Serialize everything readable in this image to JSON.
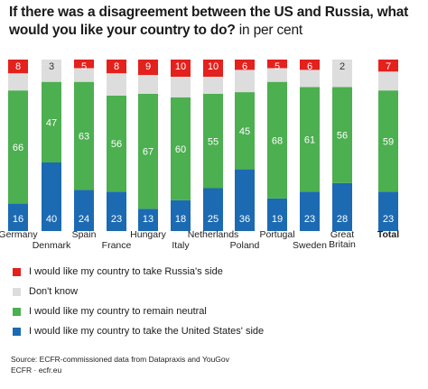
{
  "title": "If there was a disagreement between the US and Russia, what would you like your country to do?",
  "subtitle": "in per cent",
  "colors": {
    "russia": "#e3211d",
    "dont_know": "#dddddd",
    "neutral": "#4caf50",
    "us": "#1c6ab2"
  },
  "legend": [
    {
      "key": "russia",
      "label": "I would like my country to take Russia's side"
    },
    {
      "key": "dont_know",
      "label": "Don't know"
    },
    {
      "key": "neutral",
      "label": "I would like my country to remain neutral"
    },
    {
      "key": "us",
      "label": "I would like my country to take the United States' side"
    }
  ],
  "footer": {
    "source": "Source: ECFR-commissioned data from Datapraxis and YouGov",
    "credit": "ECFR · ecfr.eu"
  },
  "chart_data": {
    "type": "bar",
    "stacked": true,
    "categories": [
      "Germany",
      "Denmark",
      "Spain",
      "France",
      "Hungary",
      "Italy",
      "Netherlands",
      "Poland",
      "Portugal",
      "Sweden",
      "Great Britain",
      "Total"
    ],
    "series": [
      {
        "key": "us",
        "values": [
          16,
          40,
          24,
          23,
          13,
          18,
          25,
          36,
          19,
          23,
          28,
          23
        ]
      },
      {
        "key": "neutral",
        "values": [
          66,
          47,
          63,
          56,
          67,
          60,
          55,
          45,
          68,
          61,
          56,
          59
        ]
      },
      {
        "key": "dont_know",
        "values": [
          null,
          null,
          null,
          null,
          null,
          null,
          null,
          null,
          null,
          null,
          null,
          null
        ]
      },
      {
        "key": "russia",
        "values": [
          8,
          3,
          5,
          8,
          9,
          10,
          10,
          6,
          5,
          6,
          2,
          7
        ]
      }
    ],
    "ylim": [
      0,
      100
    ]
  }
}
